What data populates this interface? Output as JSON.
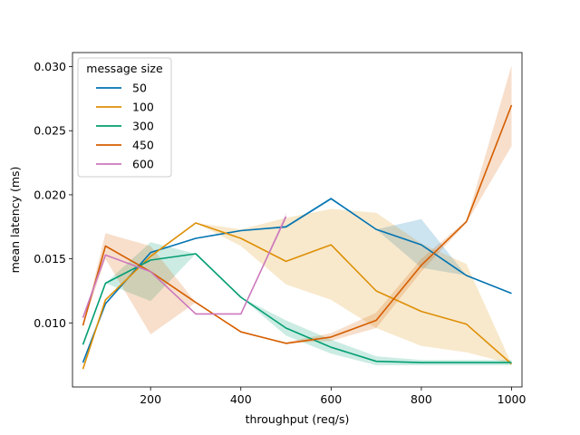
{
  "chart_data": {
    "type": "line",
    "title": "",
    "xlabel": "throughput (req/s)",
    "ylabel": "mean latency (ms)",
    "xlim": [
      27,
      1023
    ],
    "ylim": [
      0.005,
      0.0311
    ],
    "xticks": [
      200,
      400,
      600,
      800,
      1000
    ],
    "xtick_labels": [
      "200",
      "400",
      "600",
      "800",
      "1000"
    ],
    "yticks": [
      0.01,
      0.015,
      0.02,
      0.025,
      0.03
    ],
    "ytick_labels": [
      "0.010",
      "0.015",
      "0.020",
      "0.025",
      "0.030"
    ],
    "grid": false,
    "legend": {
      "title": "message size",
      "placement": "top-left"
    },
    "series": [
      {
        "name": "50",
        "color": "#0173b2",
        "x": [
          50,
          100,
          200,
          300,
          400,
          500,
          600,
          700,
          800,
          900,
          1000
        ],
        "y": [
          0.0069,
          0.0115,
          0.0155,
          0.0166,
          0.0172,
          0.0175,
          0.0197,
          0.0173,
          0.0161,
          0.0137,
          0.0123
        ],
        "ci_lower": [
          0.0069,
          0.0115,
          0.0155,
          0.0166,
          0.0172,
          0.0174,
          0.0196,
          0.0173,
          0.0143,
          0.0137,
          0.0123
        ],
        "ci_upper": [
          0.0069,
          0.0115,
          0.0155,
          0.0166,
          0.0172,
          0.0176,
          0.0198,
          0.0173,
          0.0181,
          0.0137,
          0.0123
        ]
      },
      {
        "name": "100",
        "color": "#de8f05",
        "x": [
          50,
          100,
          200,
          300,
          400,
          500,
          600,
          700,
          800,
          900,
          1000
        ],
        "y": [
          0.0064,
          0.0118,
          0.0152,
          0.0178,
          0.0166,
          0.0148,
          0.0161,
          0.0125,
          0.0109,
          0.0099,
          0.0068
        ],
        "ci_lower": [
          0.0064,
          0.0118,
          0.0152,
          0.0178,
          0.016,
          0.013,
          0.0118,
          0.0096,
          0.0082,
          0.0077,
          0.0068
        ],
        "ci_upper": [
          0.0064,
          0.0118,
          0.0152,
          0.0178,
          0.0173,
          0.0182,
          0.0189,
          0.0186,
          0.0162,
          0.0146,
          0.0068
        ]
      },
      {
        "name": "300",
        "color": "#029e73",
        "x": [
          50,
          100,
          200,
          300,
          400,
          500,
          600,
          700,
          800,
          900,
          1000
        ],
        "y": [
          0.0083,
          0.0131,
          0.0149,
          0.0154,
          0.012,
          0.0096,
          0.0081,
          0.007,
          0.0069,
          0.0069,
          0.0069
        ],
        "ci_lower": [
          0.0083,
          0.0131,
          0.0117,
          0.0154,
          0.012,
          0.009,
          0.0076,
          0.0067,
          0.0067,
          0.0067,
          0.0067
        ],
        "ci_upper": [
          0.0083,
          0.0131,
          0.0163,
          0.0154,
          0.012,
          0.0102,
          0.0087,
          0.0074,
          0.0071,
          0.0071,
          0.0071
        ]
      },
      {
        "name": "450",
        "color": "#d55e00",
        "x": [
          50,
          100,
          200,
          300,
          400,
          500,
          600,
          700,
          800,
          900,
          1000
        ],
        "y": [
          0.0098,
          0.016,
          0.014,
          0.0116,
          0.0093,
          0.0084,
          0.0089,
          0.0102,
          0.0145,
          0.0179,
          0.027
        ],
        "ci_lower": [
          0.0098,
          0.015,
          0.0091,
          0.0116,
          0.0093,
          0.0084,
          0.0086,
          0.0096,
          0.014,
          0.0178,
          0.0238
        ],
        "ci_upper": [
          0.0098,
          0.017,
          0.016,
          0.0116,
          0.0093,
          0.0085,
          0.0092,
          0.0108,
          0.015,
          0.018,
          0.0301
        ]
      },
      {
        "name": "600",
        "color": "#cc78bc",
        "x": [
          50,
          100,
          200,
          300,
          400,
          500
        ],
        "y": [
          0.0104,
          0.0153,
          0.014,
          0.0107,
          0.0107,
          0.0183
        ],
        "ci_lower": [
          0.0104,
          0.0153,
          0.014,
          0.0107,
          0.0107,
          0.0181
        ],
        "ci_upper": [
          0.0104,
          0.0153,
          0.014,
          0.0107,
          0.0107,
          0.0186
        ]
      }
    ]
  }
}
